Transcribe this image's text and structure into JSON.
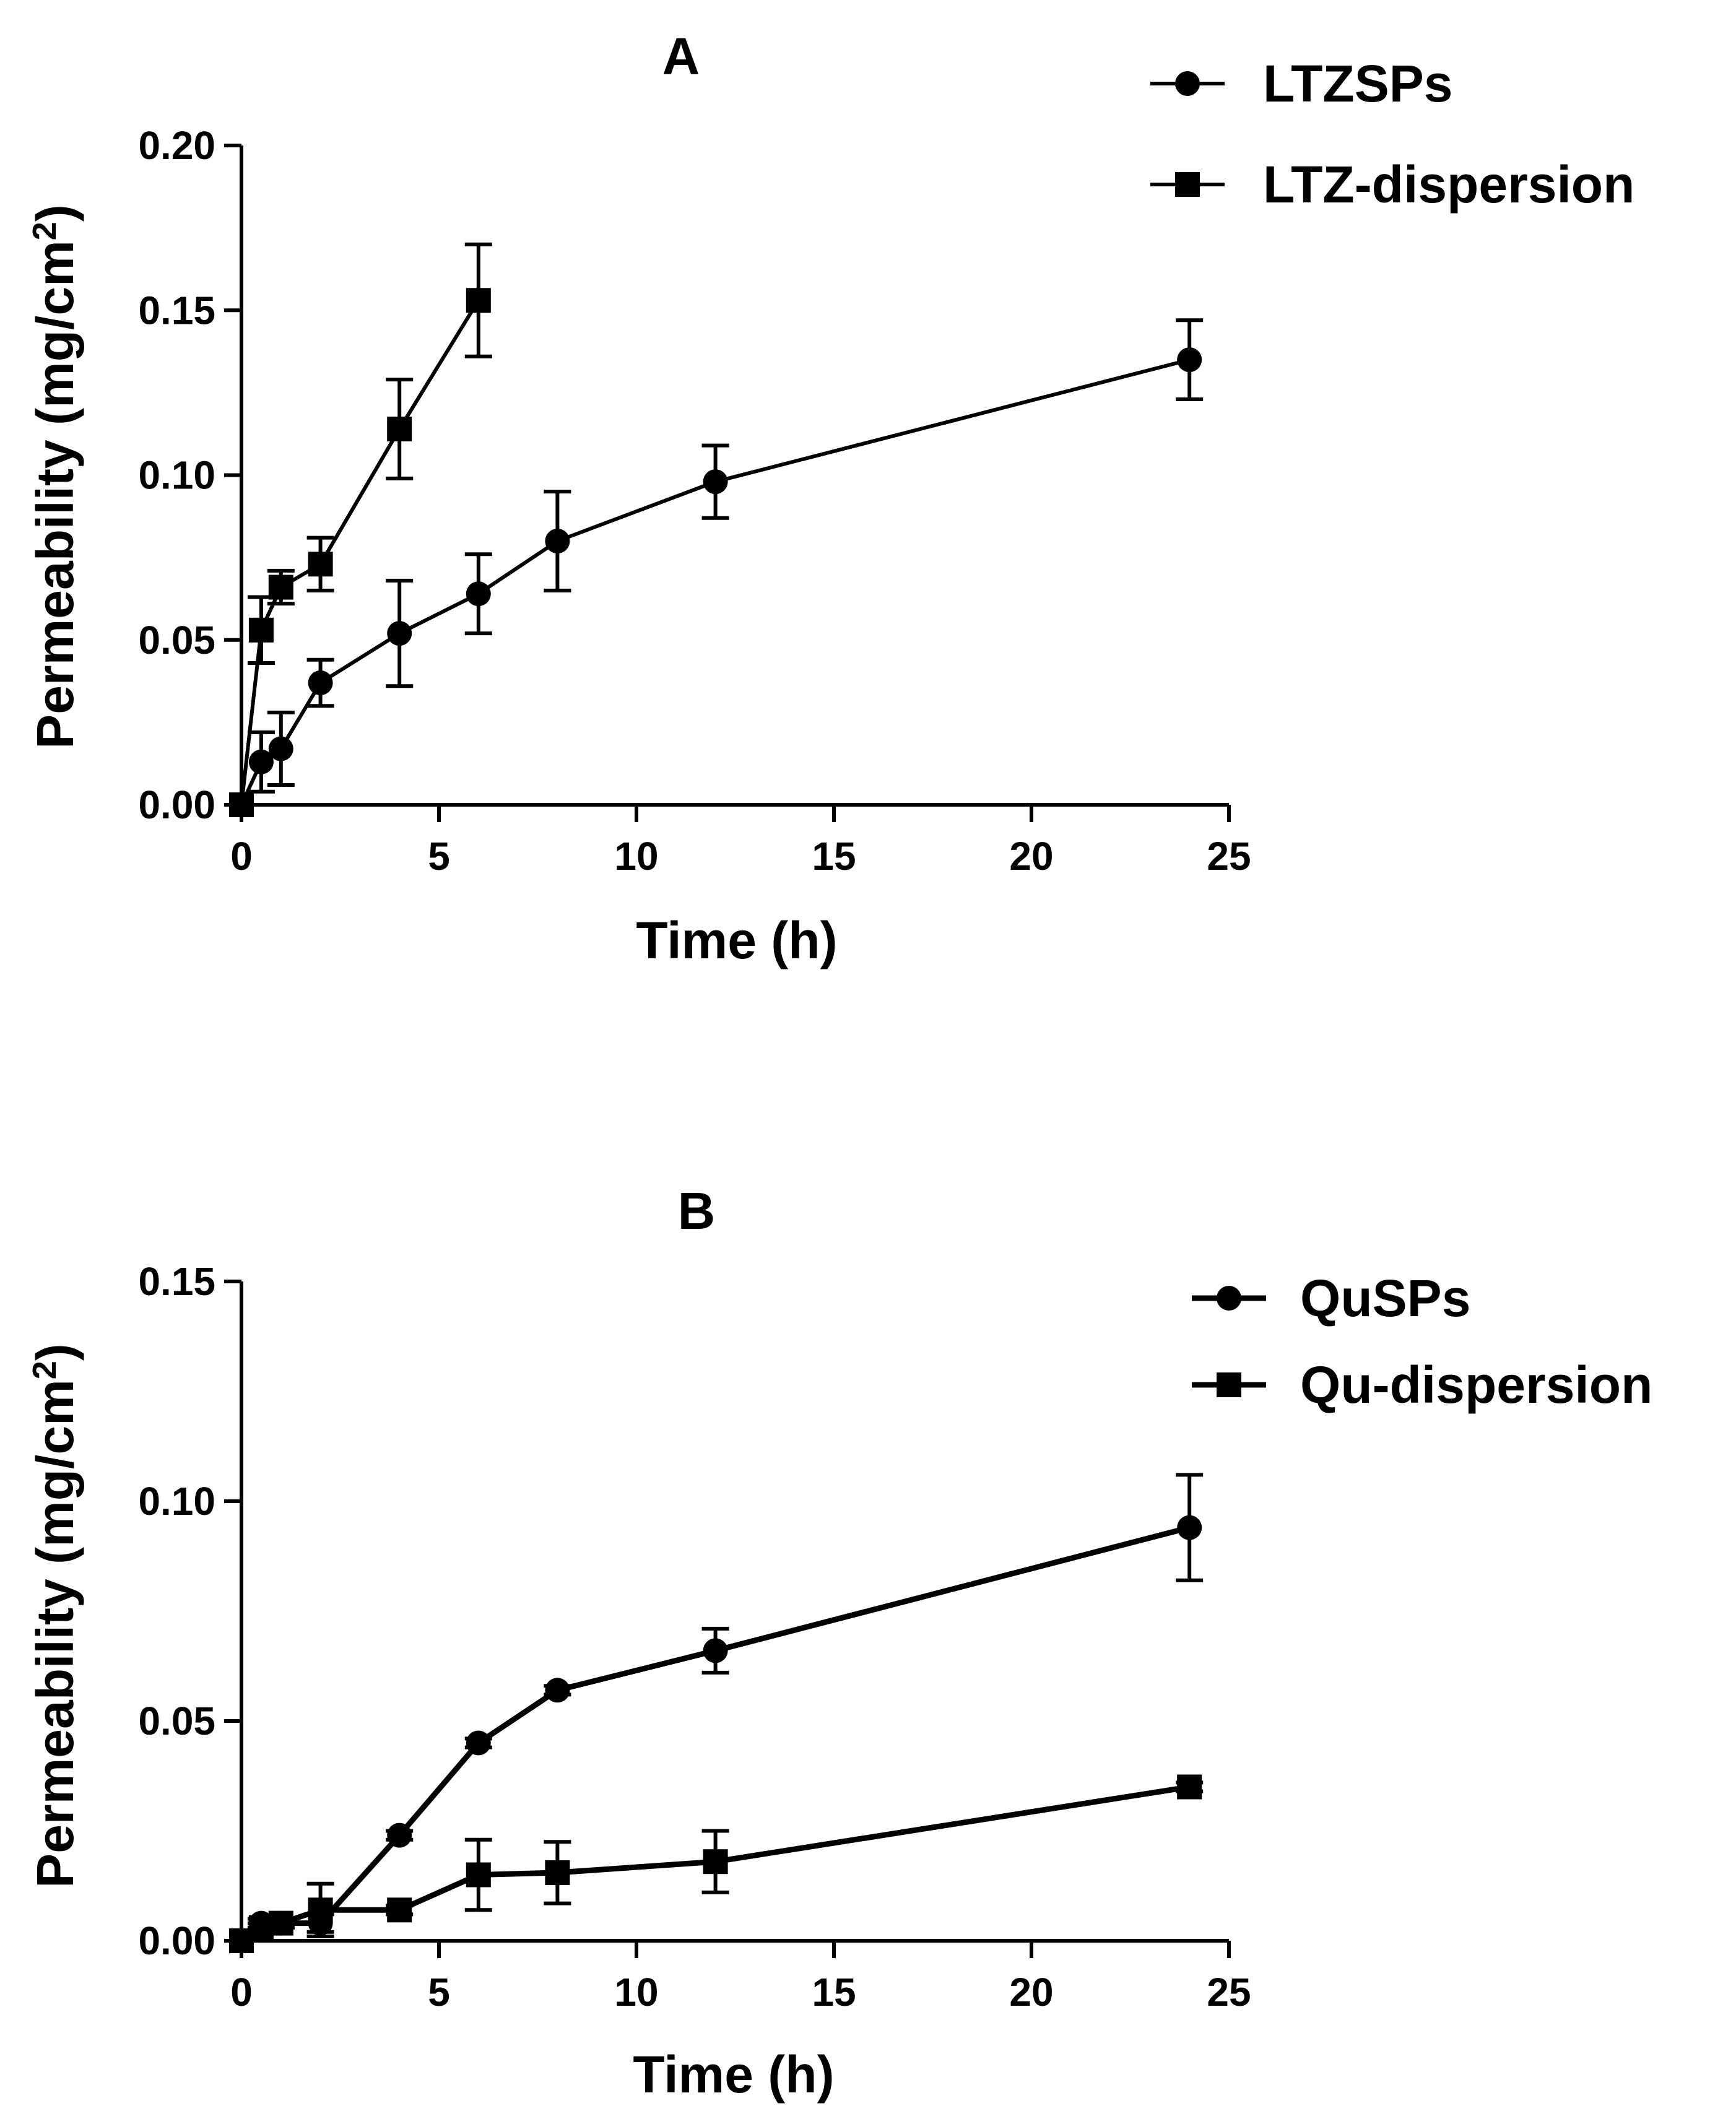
{
  "colors": {
    "background": "#ffffff",
    "ink": "#000000"
  },
  "chart_data": [
    {
      "panel": "A",
      "type": "line",
      "title": "A",
      "xlabel": "Time (h)",
      "ylabel": "Permeability (mg/cm2)",
      "ylabel_text": "Permeability (mg/cm",
      "ylabel_sup": "2",
      "ylabel_close": ")",
      "xlim": [
        0,
        25
      ],
      "ylim": [
        0,
        0.2
      ],
      "xticks": [
        0,
        5,
        10,
        15,
        20,
        25
      ],
      "xtick_labels": [
        "0",
        "5",
        "10",
        "15",
        "20",
        "25"
      ],
      "yticks": [
        0,
        0.05,
        0.1,
        0.15,
        0.2
      ],
      "ytick_labels": [
        "0.00",
        "0.05",
        "0.10",
        "0.15",
        "0.20"
      ],
      "grid": false,
      "legend_position": "top-right",
      "series": [
        {
          "name": "LTZSPs",
          "marker": "circle",
          "x": [
            0,
            0.5,
            1,
            2,
            4,
            6,
            8,
            12,
            24
          ],
          "y": [
            0,
            0.013,
            0.017,
            0.037,
            0.052,
            0.064,
            0.08,
            0.098,
            0.135
          ],
          "error": [
            0,
            0.009,
            0.011,
            0.007,
            0.016,
            0.012,
            0.015,
            0.011,
            0.012
          ]
        },
        {
          "name": "LTZ-dispersion",
          "marker": "square",
          "x": [
            0,
            0.5,
            1,
            2,
            4,
            6
          ],
          "y": [
            0,
            0.053,
            0.066,
            0.073,
            0.114,
            0.153
          ],
          "error": [
            0,
            0.01,
            0.005,
            0.008,
            0.015,
            0.017
          ]
        }
      ]
    },
    {
      "panel": "B",
      "type": "line",
      "title": "B",
      "xlabel": "Time (h)",
      "ylabel": "Permeability (mg/cm2)",
      "ylabel_text": "Permeability (mg/cm",
      "ylabel_sup": "2",
      "ylabel_close": ")",
      "xlim": [
        0,
        25
      ],
      "ylim": [
        0,
        0.15
      ],
      "xticks": [
        0,
        5,
        10,
        15,
        20,
        25
      ],
      "xtick_labels": [
        "0",
        "5",
        "10",
        "15",
        "20",
        "25"
      ],
      "yticks": [
        0,
        0.05,
        0.1,
        0.15
      ],
      "ytick_labels": [
        "0.00",
        "0.05",
        "0.10",
        "0.15"
      ],
      "grid": false,
      "legend_position": "top-right",
      "series": [
        {
          "name": "QuSPs",
          "marker": "circle",
          "x": [
            0,
            0.5,
            1,
            2,
            4,
            6,
            8,
            12,
            24
          ],
          "y": [
            0,
            0.004,
            0.004,
            0.004,
            0.024,
            0.045,
            0.057,
            0.066,
            0.094
          ],
          "error": [
            0,
            0.001,
            0.001,
            0.002,
            0.001,
            0.001,
            0.001,
            0.005,
            0.012
          ]
        },
        {
          "name": "Qu-dispersion",
          "marker": "square",
          "x": [
            0,
            0.5,
            1,
            2,
            4,
            6,
            8,
            12,
            24
          ],
          "y": [
            0,
            0.003,
            0.004,
            0.007,
            0.007,
            0.015,
            0.0155,
            0.018,
            0.035
          ],
          "error": [
            0,
            0.001,
            0.001,
            0.006,
            0.001,
            0.008,
            0.007,
            0.007,
            0.001
          ]
        }
      ]
    }
  ]
}
